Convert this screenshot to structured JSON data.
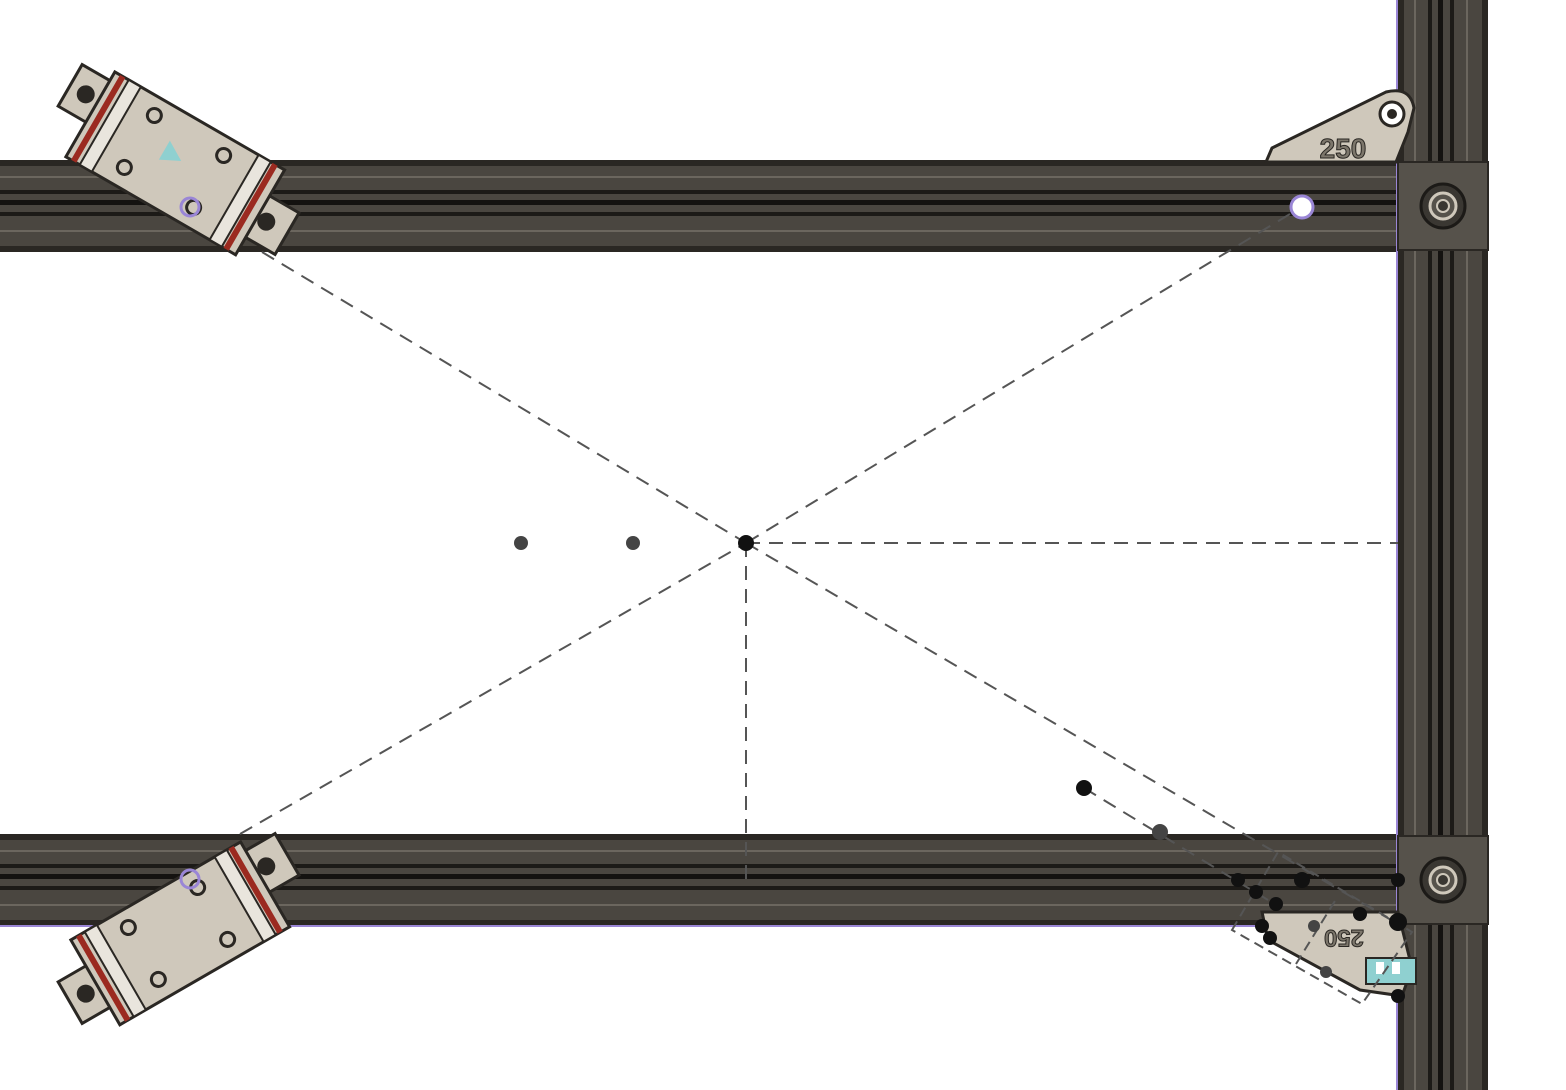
{
  "canvas": {
    "background": "#ffffff",
    "profile_color": "#4a4640",
    "profile_groove": "#1c1a17",
    "profile_highlight": "#6b665e",
    "part_color": "#cfc8bb",
    "part_stroke": "#2a2723",
    "accent_red": "#9b2a20",
    "sketch_line": "#555555",
    "selection_purple": "#9a86d6",
    "teal_marker": "#8fd0d0"
  },
  "brackets": {
    "top_label": "250",
    "bottom_label": "250"
  },
  "icons": {
    "carriage": "linear-rail-carriage-icon",
    "bracket": "corner-bracket-icon",
    "bolt": "bolt-head-icon",
    "point": "sketch-point-icon",
    "origin": "origin-icon"
  }
}
